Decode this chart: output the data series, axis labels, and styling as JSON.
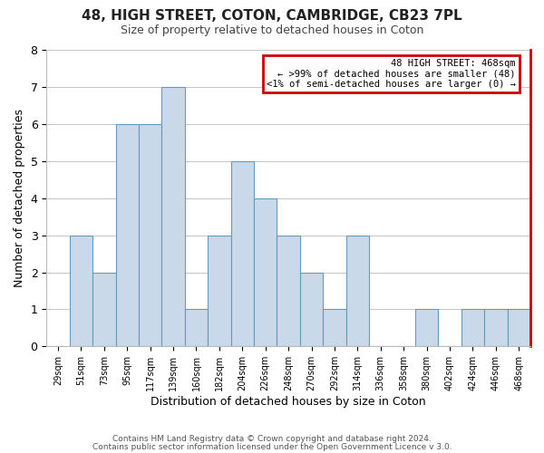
{
  "title": "48, HIGH STREET, COTON, CAMBRIDGE, CB23 7PL",
  "subtitle": "Size of property relative to detached houses in Coton",
  "xlabel": "Distribution of detached houses by size in Coton",
  "ylabel": "Number of detached properties",
  "bar_labels": [
    "29sqm",
    "51sqm",
    "73sqm",
    "95sqm",
    "117sqm",
    "139sqm",
    "160sqm",
    "182sqm",
    "204sqm",
    "226sqm",
    "248sqm",
    "270sqm",
    "292sqm",
    "314sqm",
    "336sqm",
    "358sqm",
    "380sqm",
    "402sqm",
    "424sqm",
    "446sqm",
    "468sqm"
  ],
  "bar_heights": [
    0,
    3,
    2,
    6,
    6,
    7,
    1,
    3,
    5,
    4,
    3,
    2,
    1,
    3,
    0,
    0,
    1,
    0,
    1,
    1,
    1
  ],
  "bar_color": "#c9d9ea",
  "bar_edge_color": "#6699bb",
  "highlight_bar_index": 20,
  "legend_title": "48 HIGH STREET: 468sqm",
  "legend_line1": "← >99% of detached houses are smaller (48)",
  "legend_line2": "<1% of semi-detached houses are larger (0) →",
  "legend_box_edge_color": "#cc0000",
  "ylim": [
    0,
    8
  ],
  "yticks": [
    0,
    1,
    2,
    3,
    4,
    5,
    6,
    7,
    8
  ],
  "footer1": "Contains HM Land Registry data © Crown copyright and database right 2024.",
  "footer2": "Contains public sector information licensed under the Open Government Licence v 3.0.",
  "bg_color": "#ffffff",
  "grid_color": "#bbbbbb"
}
